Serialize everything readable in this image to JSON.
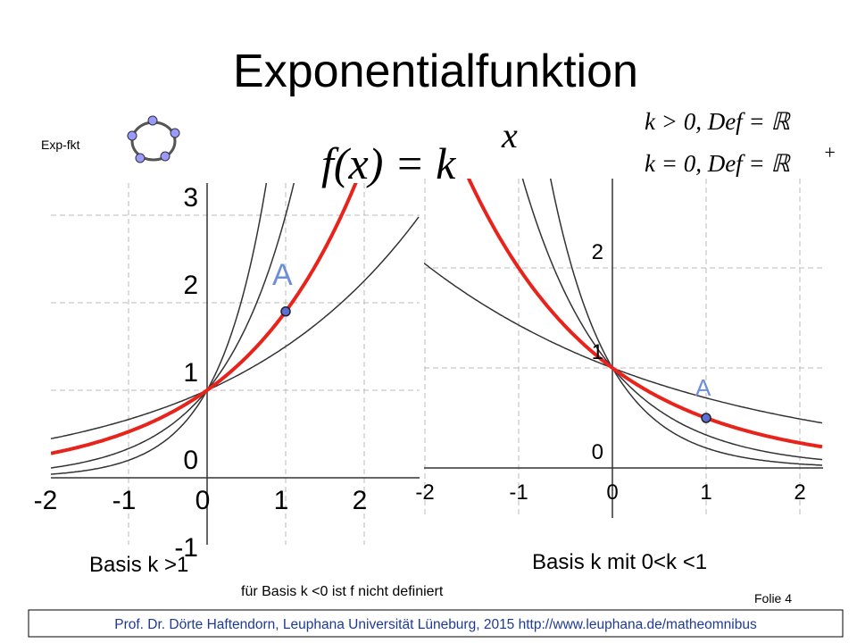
{
  "title": "Exponentialfunktion",
  "icon_label": "Exp-fkt",
  "formula": {
    "main": "f(x) = k",
    "exponent": "x"
  },
  "conditions": [
    {
      "text": "k > 0, Def = ℝ",
      "sup": ""
    },
    {
      "text": "k = 0, Def = ℝ",
      "sup": "+"
    }
  ],
  "graphs": [
    {
      "caption": "Basis k >1",
      "point": "A",
      "xticks": [
        "-2",
        "-1",
        "0",
        "1",
        "2"
      ],
      "yticks": [
        "-1",
        "0",
        "1",
        "2",
        "3"
      ]
    },
    {
      "caption": "Basis k mit 0<k <1",
      "point": "A",
      "xticks": [
        "-2",
        "-1",
        "0",
        "1",
        "2"
      ],
      "yticks": [
        "0",
        "1",
        "2"
      ]
    }
  ],
  "note": "für Basis k <0 ist f nicht definiert",
  "folio": "Folie 4",
  "footer": "Prof. Dr. Dörte Haftendorn, Leuphana Universität Lüneburg, 2015 http://www.leuphana.de/matheomnibus"
}
